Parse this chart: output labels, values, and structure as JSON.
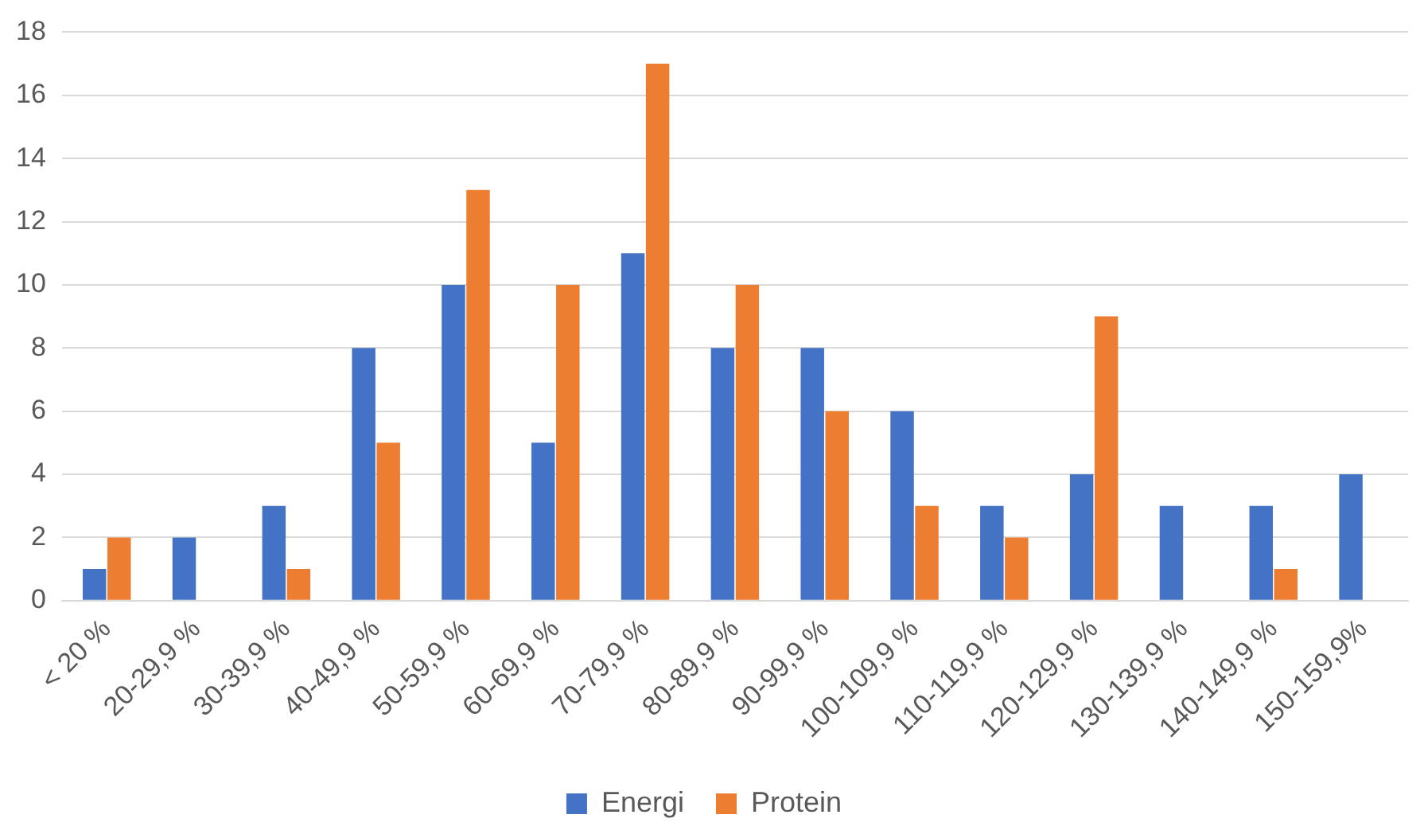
{
  "chart_data": {
    "type": "bar",
    "categories": [
      "< 20 %",
      "20-29,9 %",
      "30-39,9 %",
      "40-49,9 %",
      "50-59,9 %",
      "60-69,9 %",
      "70-79,9 %",
      "80-89,9 %",
      "90-99,9 %",
      "100-109,9 %",
      "110-119,9 %",
      "120-129,9 %",
      "130-139,9 %",
      "140-149,9 %",
      "150-159,9%"
    ],
    "series": [
      {
        "name": "Energi",
        "color": "#4472c4",
        "values": [
          1,
          2,
          3,
          8,
          10,
          5,
          11,
          8,
          8,
          6,
          3,
          4,
          3,
          3,
          4
        ]
      },
      {
        "name": "Protein",
        "color": "#ed7d31",
        "values": [
          2,
          null,
          1,
          5,
          13,
          10,
          17,
          10,
          6,
          3,
          2,
          9,
          null,
          1,
          null
        ]
      }
    ],
    "ylim": [
      0,
      18
    ],
    "yticks": [
      0,
      2,
      4,
      6,
      8,
      10,
      12,
      14,
      16,
      18
    ],
    "grid": "y",
    "legend": "bottom"
  }
}
